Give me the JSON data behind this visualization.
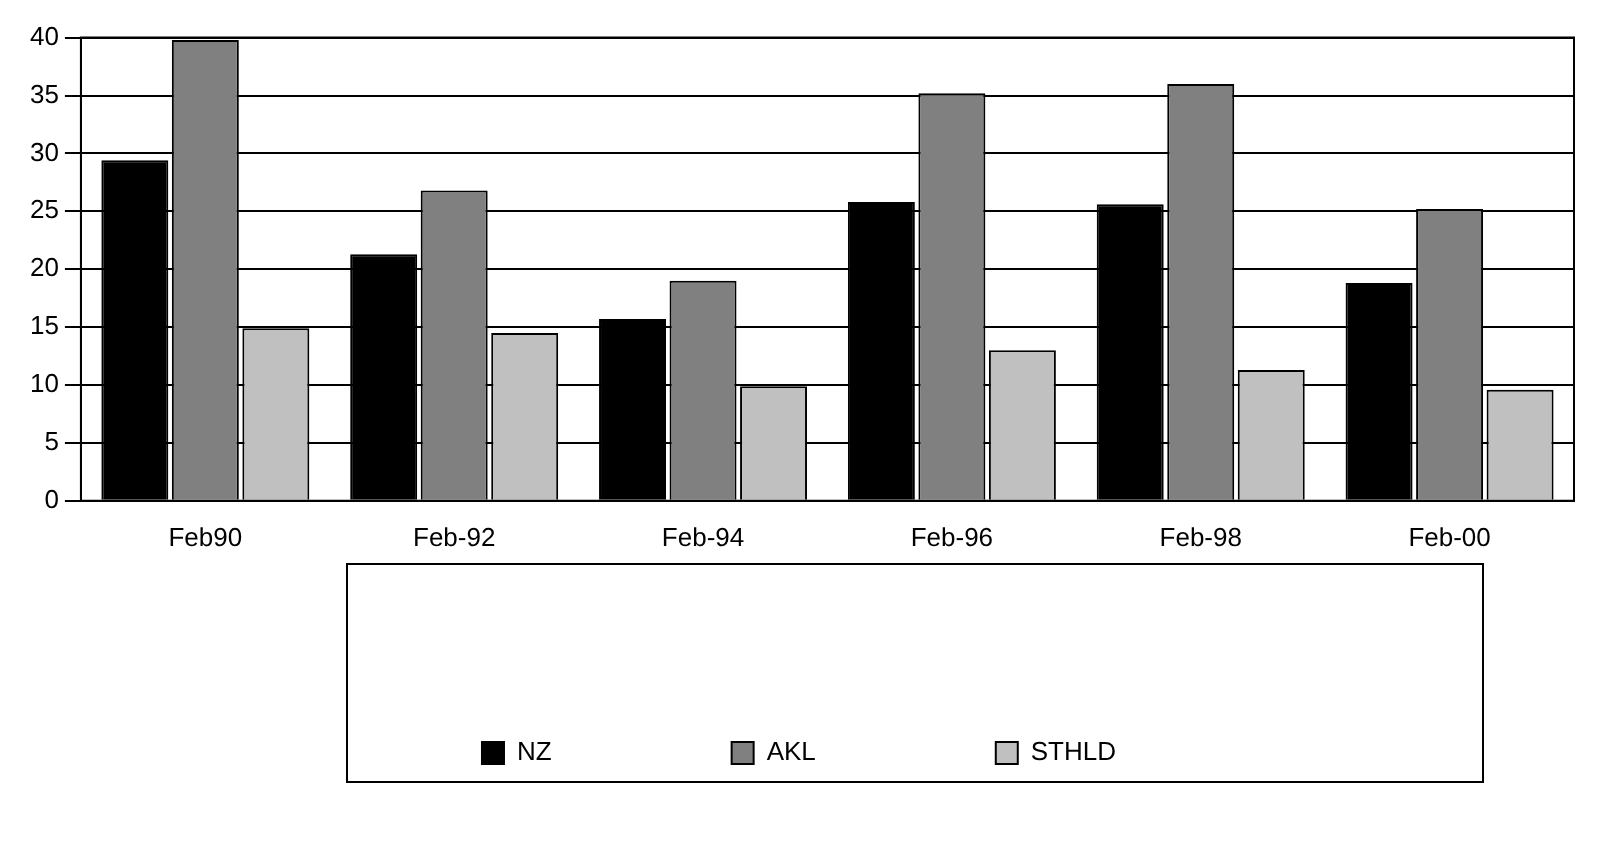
{
  "chart_data": {
    "type": "bar",
    "categories": [
      "Feb90",
      "Feb-92",
      "Feb-94",
      "Feb-96",
      "Feb-98",
      "Feb-00"
    ],
    "series": [
      {
        "name": "NZ",
        "color": "#000000",
        "values": [
          29.4,
          21.3,
          15.7,
          25.8,
          25.6,
          18.8
        ]
      },
      {
        "name": "AKL",
        "color": "#808080",
        "values": [
          39.8,
          26.8,
          19.0,
          35.2,
          36.0,
          25.2
        ]
      },
      {
        "name": "STHLD",
        "color": "#c0c0c0",
        "values": [
          14.9,
          14.5,
          9.9,
          13.0,
          11.3,
          9.6
        ]
      }
    ],
    "ylim": [
      0,
      40
    ],
    "yticks": [
      0,
      5,
      10,
      15,
      20,
      25,
      30,
      35,
      40
    ],
    "grid": "y",
    "legend": "bottom"
  }
}
